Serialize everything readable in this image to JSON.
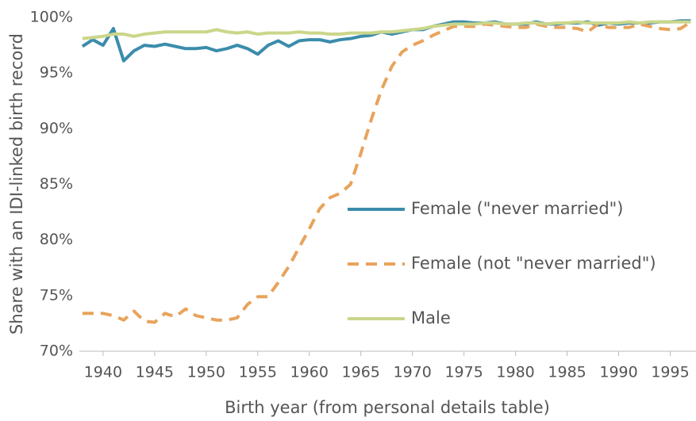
{
  "chart_data": {
    "type": "line",
    "xlabel": "Birth year (from personal details table)",
    "ylabel": "Share with an IDI-linked birth record",
    "x": [
      1938,
      1939,
      1940,
      1941,
      1942,
      1943,
      1944,
      1945,
      1946,
      1947,
      1948,
      1949,
      1950,
      1951,
      1952,
      1953,
      1954,
      1955,
      1956,
      1957,
      1958,
      1959,
      1960,
      1961,
      1962,
      1963,
      1964,
      1965,
      1966,
      1967,
      1968,
      1969,
      1970,
      1971,
      1972,
      1973,
      1974,
      1975,
      1976,
      1977,
      1978,
      1979,
      1980,
      1981,
      1982,
      1983,
      1984,
      1985,
      1986,
      1987,
      1988,
      1989,
      1990,
      1991,
      1992,
      1993,
      1994,
      1995,
      1996,
      1997
    ],
    "series": [
      {
        "name": "Female (\"never married\")",
        "color": "#3b8cab",
        "dash": false,
        "values": [
          97.4,
          98.0,
          97.5,
          99.0,
          96.1,
          97.0,
          97.5,
          97.4,
          97.6,
          97.4,
          97.2,
          97.2,
          97.3,
          97.0,
          97.2,
          97.5,
          97.2,
          96.7,
          97.5,
          97.9,
          97.4,
          97.9,
          98.0,
          98.0,
          97.8,
          98.0,
          98.1,
          98.3,
          98.4,
          98.7,
          98.5,
          98.7,
          98.9,
          98.9,
          99.2,
          99.4,
          99.6,
          99.6,
          99.5,
          99.5,
          99.6,
          99.4,
          99.4,
          99.4,
          99.6,
          99.4,
          99.4,
          99.5,
          99.5,
          99.6,
          99.3,
          99.5,
          99.4,
          99.5,
          99.5,
          99.5,
          99.6,
          99.6,
          99.7,
          99.7
        ]
      },
      {
        "name": "Female (not \"never married\")",
        "color": "#e8a35c",
        "dash": true,
        "values": [
          73.4,
          73.4,
          73.4,
          73.2,
          72.8,
          73.6,
          72.7,
          72.6,
          73.4,
          73.1,
          73.8,
          73.2,
          73.0,
          72.8,
          72.8,
          73.0,
          74.2,
          74.9,
          74.9,
          76.2,
          77.6,
          79.3,
          81.0,
          82.8,
          83.8,
          84.2,
          85.0,
          87.8,
          90.8,
          93.5,
          95.6,
          96.9,
          97.5,
          97.9,
          98.4,
          98.8,
          99.2,
          99.2,
          99.2,
          99.4,
          99.3,
          99.2,
          99.1,
          99.1,
          99.4,
          99.2,
          99.1,
          99.1,
          99.0,
          98.7,
          99.4,
          99.1,
          99.1,
          99.1,
          99.4,
          99.2,
          99.0,
          98.9,
          99.0,
          99.6
        ]
      },
      {
        "name": "Male",
        "color": "#cbd68a",
        "dash": false,
        "values": [
          98.1,
          98.2,
          98.3,
          98.5,
          98.5,
          98.3,
          98.5,
          98.6,
          98.7,
          98.7,
          98.7,
          98.7,
          98.7,
          98.9,
          98.7,
          98.6,
          98.7,
          98.5,
          98.6,
          98.6,
          98.6,
          98.7,
          98.6,
          98.6,
          98.5,
          98.5,
          98.6,
          98.6,
          98.6,
          98.7,
          98.7,
          98.8,
          98.9,
          99.0,
          99.2,
          99.3,
          99.4,
          99.4,
          99.4,
          99.5,
          99.5,
          99.4,
          99.4,
          99.5,
          99.5,
          99.4,
          99.5,
          99.5,
          99.6,
          99.5,
          99.5,
          99.5,
          99.5,
          99.6,
          99.5,
          99.6,
          99.6,
          99.6,
          99.6,
          99.6
        ]
      }
    ],
    "xlim": [
      1937.7,
      1997.5
    ],
    "xticks": [
      1940,
      1945,
      1950,
      1955,
      1960,
      1965,
      1970,
      1975,
      1980,
      1985,
      1990,
      1995
    ],
    "ylim": [
      70,
      100
    ],
    "yticks": [
      {
        "value": 70,
        "label": "70%"
      },
      {
        "value": 75,
        "label": "75%"
      },
      {
        "value": 80,
        "label": "80%"
      },
      {
        "value": 85,
        "label": "85%"
      },
      {
        "value": 90,
        "label": "90%"
      },
      {
        "value": 95,
        "label": "95%"
      },
      {
        "value": 100,
        "label": "100%"
      }
    ],
    "grid": false
  }
}
